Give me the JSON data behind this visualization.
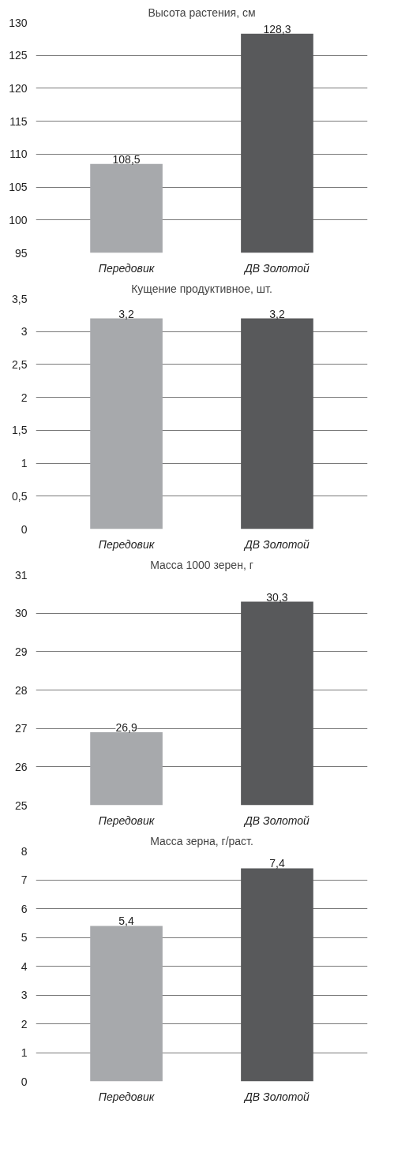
{
  "chart_data": [
    {
      "type": "bar",
      "title": "Высота растения, см",
      "categories": [
        "Передовик",
        "ДВ Золотой"
      ],
      "values": [
        108.5,
        128.3
      ],
      "colors": [
        "#a7a9ac",
        "#58595b"
      ],
      "value_labels": [
        "108,5",
        "128,3"
      ],
      "ylim": [
        95,
        130
      ],
      "yticks": [
        95,
        100,
        105,
        110,
        115,
        120,
        125,
        130
      ],
      "grid": "y",
      "legend": false
    },
    {
      "type": "bar",
      "title": "Кущение продуктивное, шт.",
      "categories": [
        "Передовик",
        "ДВ Золотой"
      ],
      "values": [
        3.2,
        3.2
      ],
      "colors": [
        "#a7a9ac",
        "#58595b"
      ],
      "value_labels": [
        "3,2",
        "3,2"
      ],
      "ylim": [
        0,
        3.5
      ],
      "yticks": [
        0,
        {
          "value": 0.5,
          "label": "0,5"
        },
        1,
        {
          "value": 1.5,
          "label": "1,5"
        },
        2,
        {
          "value": 2.5,
          "label": "2,5"
        },
        3,
        {
          "value": 3.5,
          "label": "3,5"
        }
      ],
      "grid": "y",
      "legend": false
    },
    {
      "type": "bar",
      "title": "Масса 1000 зерен, г",
      "categories": [
        "Передовик",
        "ДВ Золотой"
      ],
      "values": [
        26.9,
        30.3
      ],
      "colors": [
        "#a7a9ac",
        "#58595b"
      ],
      "value_labels": [
        "26,9",
        "30,3"
      ],
      "ylim": [
        25,
        31
      ],
      "yticks": [
        25,
        26,
        27,
        28,
        29,
        30,
        31
      ],
      "grid": "y",
      "legend": false
    },
    {
      "type": "bar",
      "title": "Масса зерна, г/раст.",
      "categories": [
        "Передовик",
        "ДВ Золотой"
      ],
      "values": [
        5.4,
        7.4
      ],
      "colors": [
        "#a7a9ac",
        "#58595b"
      ],
      "value_labels": [
        "5,4",
        "7,4"
      ],
      "ylim": [
        0,
        8
      ],
      "yticks": [
        0,
        1,
        2,
        3,
        4,
        5,
        6,
        7,
        8
      ],
      "grid": "y",
      "legend": false
    }
  ]
}
